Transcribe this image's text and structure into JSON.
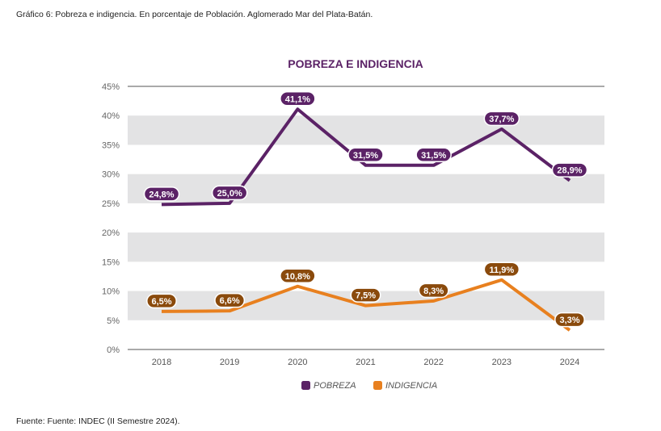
{
  "caption": "Gráfico 6: Pobreza e indigencia. En porcentaje de Población. Aglomerado Mar del Plata-Batán.",
  "source": "Fuente: Fuente: INDEC (II Semestre 2024).",
  "chart_data": {
    "type": "line",
    "title": "POBREZA E INDIGENCIA",
    "xlabel": "",
    "ylabel": "",
    "categories": [
      "2018",
      "2019",
      "2020",
      "2021",
      "2022",
      "2023",
      "2024"
    ],
    "ylim": [
      0,
      45
    ],
    "yticks": [
      0,
      5,
      10,
      15,
      20,
      25,
      30,
      35,
      40,
      45
    ],
    "ytick_labels": [
      "0%",
      "5%",
      "10%",
      "15%",
      "20%",
      "25%",
      "30%",
      "35%",
      "40%",
      "45%"
    ],
    "grid": "alternating horizontal bands",
    "legend_position": "bottom",
    "series": [
      {
        "name": "POBREZA",
        "color": "#5b2266",
        "values": [
          24.8,
          25.0,
          41.1,
          31.5,
          31.5,
          37.7,
          28.9
        ],
        "labels": [
          "24,8%",
          "25,0%",
          "41,1%",
          "31,5%",
          "31,5%",
          "37,7%",
          "28,9%"
        ]
      },
      {
        "name": "INDIGENCIA",
        "color": "#e8801f",
        "label_color": "#8a4a0c",
        "values": [
          6.5,
          6.6,
          10.8,
          7.5,
          8.3,
          11.9,
          3.3
        ],
        "labels": [
          "6,5%",
          "6,6%",
          "10,8%",
          "7,5%",
          "8,3%",
          "11,9%",
          "3,3%"
        ]
      }
    ]
  }
}
